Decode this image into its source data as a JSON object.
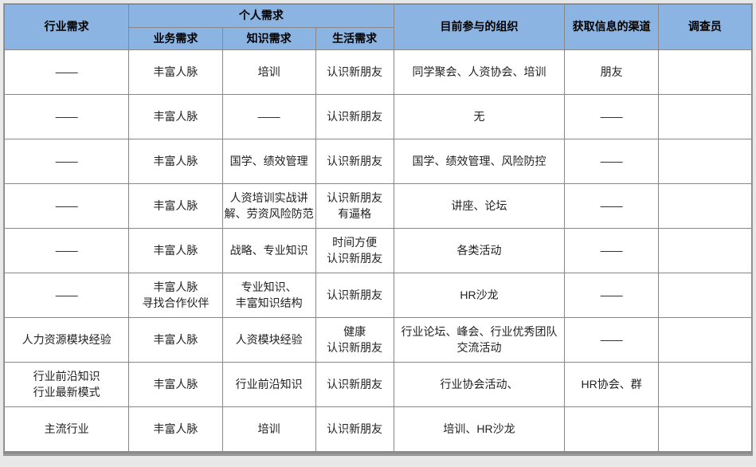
{
  "header": {
    "col0": "行业需求",
    "group": "个人需求",
    "sub1": "业务需求",
    "sub2": "知识需求",
    "sub3": "生活需求",
    "col4": "目前参与的组织",
    "col5": "获取信息的渠道",
    "col6": "调查员"
  },
  "columns": {
    "widths_pct": [
      16,
      12,
      12,
      10,
      22,
      12,
      12
    ]
  },
  "rows": [
    {
      "c0": "——",
      "c1": "丰富人脉",
      "c2": "培训",
      "c3": "认识新朋友",
      "c4": "同学聚会、人资协会、培训",
      "c5": "朋友",
      "c6": ""
    },
    {
      "c0": "——",
      "c1": "丰富人脉",
      "c2": "——",
      "c3": "认识新朋友",
      "c4": "无",
      "c5": "——",
      "c6": ""
    },
    {
      "c0": "——",
      "c1": "丰富人脉",
      "c2": "国学、绩效管理",
      "c3": "认识新朋友",
      "c4": "国学、绩效管理、风险防控",
      "c5": "——",
      "c6": ""
    },
    {
      "c0": "——",
      "c1": "丰富人脉",
      "c2": "人资培训实战讲解、劳资风险防范",
      "c3": "认识新朋友\n有逼格",
      "c4": "讲座、论坛",
      "c5": "——",
      "c6": ""
    },
    {
      "c0": "——",
      "c1": "丰富人脉",
      "c2": "战略、专业知识",
      "c3": "时间方便\n认识新朋友",
      "c4": "各类活动",
      "c5": "——",
      "c6": ""
    },
    {
      "c0": "——",
      "c1": "丰富人脉\n寻找合作伙伴",
      "c2": "专业知识、\n丰富知识结构",
      "c3": "认识新朋友",
      "c4": "HR沙龙",
      "c5": "——",
      "c6": ""
    },
    {
      "c0": "人力资源模块经验",
      "c1": "丰富人脉",
      "c2": "人资模块经验",
      "c3": "健康\n认识新朋友",
      "c4": "行业论坛、峰会、行业优秀团队交流活动",
      "c5": "——",
      "c6": ""
    },
    {
      "c0": "行业前沿知识\n行业最新模式",
      "c1": "丰富人脉",
      "c2": "行业前沿知识",
      "c3": "认识新朋友",
      "c4": "行业协会活动、",
      "c5": "HR协会、群",
      "c6": ""
    },
    {
      "c0": "主流行业",
      "c1": "丰富人脉",
      "c2": "培训",
      "c3": "认识新朋友",
      "c4": "培训、HR沙龙",
      "c5": "",
      "c6": ""
    }
  ],
  "colors": {
    "header_bg": "#8CB4E2",
    "border": "#888888",
    "page_bg": "#e8e8e8",
    "cell_bg": "#ffffff"
  }
}
